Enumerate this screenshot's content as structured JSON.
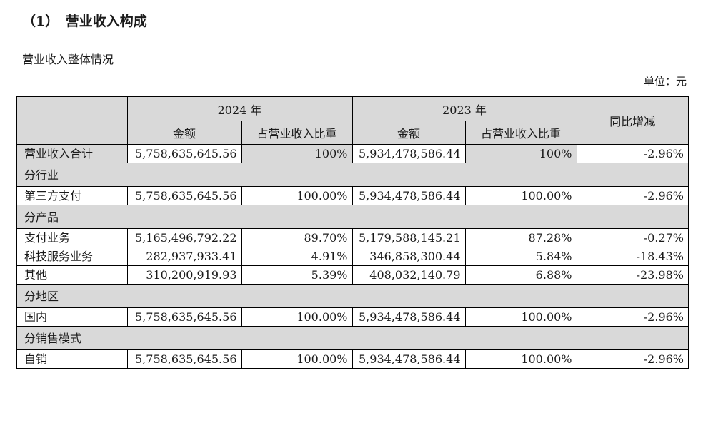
{
  "page": {
    "title": "（1）　营业收入构成",
    "subtitle": "营业收入整体情况",
    "unit_label": "单位：元"
  },
  "table": {
    "header": {
      "year_2024": "2024 年",
      "year_2023": "2023 年",
      "yoy": "同比增减",
      "amount": "金额",
      "ratio": "占营业收入比重"
    },
    "rows": [
      {
        "type": "data",
        "shaded": true,
        "label": "营业收入合计",
        "amount_2024": "5,758,635,645.56",
        "ratio_2024": "100%",
        "amount_2023": "5,934,478,586.44",
        "ratio_2023": "100%",
        "yoy": "-2.96%"
      },
      {
        "type": "section",
        "label": "分行业"
      },
      {
        "type": "data",
        "shaded": false,
        "label": "第三方支付",
        "amount_2024": "5,758,635,645.56",
        "ratio_2024": "100.00%",
        "amount_2023": "5,934,478,586.44",
        "ratio_2023": "100.00%",
        "yoy": "-2.96%"
      },
      {
        "type": "section",
        "label": "分产品"
      },
      {
        "type": "data",
        "shaded": false,
        "label": "支付业务",
        "amount_2024": "5,165,496,792.22",
        "ratio_2024": "89.70%",
        "amount_2023": "5,179,588,145.21",
        "ratio_2023": "87.28%",
        "yoy": "-0.27%"
      },
      {
        "type": "data",
        "shaded": false,
        "label": "科技服务业务",
        "amount_2024": "282,937,933.41",
        "ratio_2024": "4.91%",
        "amount_2023": "346,858,300.44",
        "ratio_2023": "5.84%",
        "yoy": "-18.43%"
      },
      {
        "type": "data",
        "shaded": false,
        "label": "其他",
        "amount_2024": "310,200,919.93",
        "ratio_2024": "5.39%",
        "amount_2023": "408,032,140.79",
        "ratio_2023": "6.88%",
        "yoy": "-23.98%"
      },
      {
        "type": "section",
        "label": "分地区"
      },
      {
        "type": "data",
        "shaded": false,
        "label": "国内",
        "amount_2024": "5,758,635,645.56",
        "ratio_2024": "100.00%",
        "amount_2023": "5,934,478,586.44",
        "ratio_2023": "100.00%",
        "yoy": "-2.96%"
      },
      {
        "type": "section",
        "label": "分销售模式"
      },
      {
        "type": "data",
        "shaded": false,
        "label": "自销",
        "amount_2024": "5,758,635,645.56",
        "ratio_2024": "100.00%",
        "amount_2023": "5,934,478,586.44",
        "ratio_2023": "100.00%",
        "yoy": "-2.96%"
      }
    ]
  },
  "colors": {
    "shaded_bg": "#d9d9d9",
    "border": "#000000",
    "text": "#1a1a1a"
  }
}
